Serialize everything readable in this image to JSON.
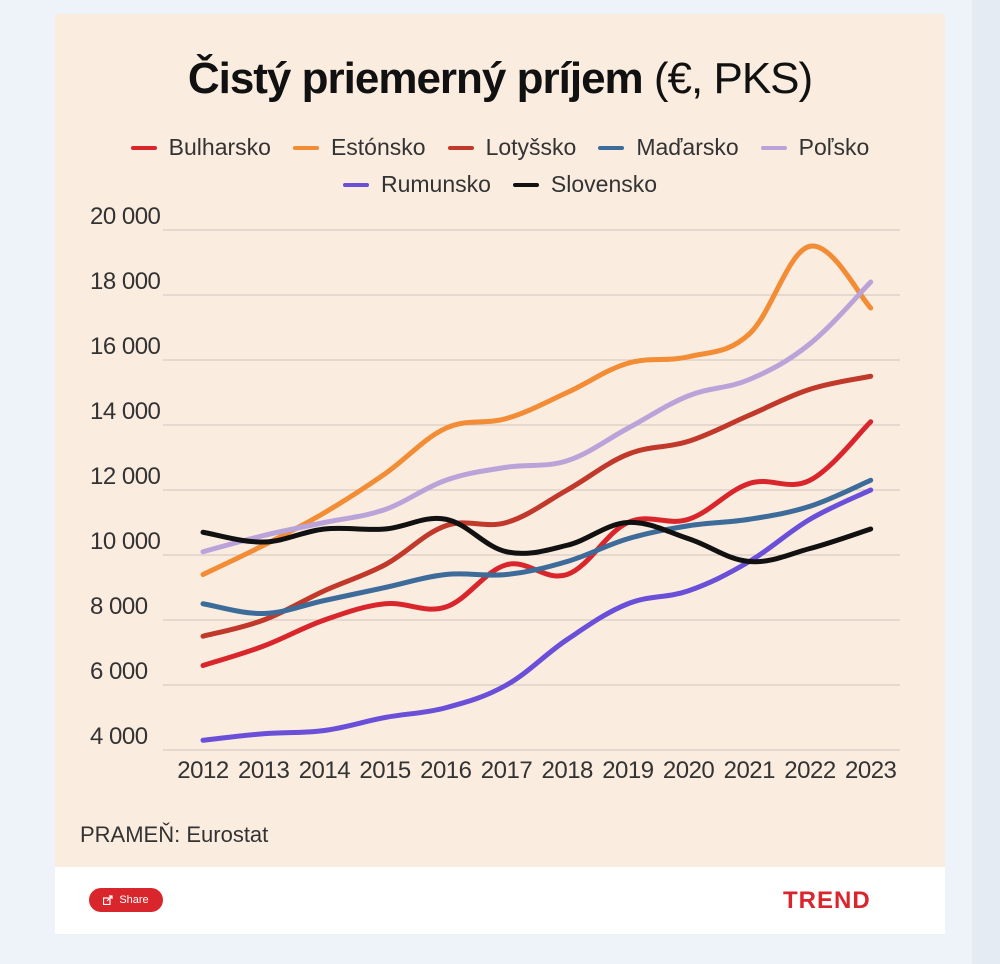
{
  "header": {
    "title_main": "Čistý priemerný príjem",
    "title_unit": "(€, PKS)"
  },
  "source": "PRAMEŇ: Eurostat",
  "footer": {
    "share_label": "Share",
    "brand": "TREND"
  },
  "colors": {
    "panel_background": "#fbece0",
    "brand_red": "#d9262c"
  },
  "chart_data": {
    "type": "line",
    "title": "Čistý priemerný príjem (€, PKS)",
    "x": [
      "2012",
      "2013",
      "2014",
      "2015",
      "2016",
      "2017",
      "2018",
      "2019",
      "2020",
      "2021",
      "2022",
      "2023"
    ],
    "ylim": [
      4000,
      20000
    ],
    "yticks": [
      4000,
      6000,
      8000,
      10000,
      12000,
      14000,
      16000,
      18000,
      20000
    ],
    "ytick_labels": [
      "4 000",
      "6 000",
      "8 000",
      "10 000",
      "12 000",
      "14 000",
      "16 000",
      "18 000",
      "20 000"
    ],
    "grid": true,
    "legend_position": "top-center",
    "series": [
      {
        "name": "Bulharsko",
        "color": "#d9262c",
        "values": [
          6600,
          7200,
          8000,
          8500,
          8400,
          9700,
          9400,
          11000,
          11100,
          12200,
          12300,
          14100
        ]
      },
      {
        "name": "Estónsko",
        "color": "#f28c35",
        "values": [
          9400,
          10300,
          11300,
          12500,
          13900,
          14200,
          15000,
          15900,
          16100,
          16800,
          19500,
          17600
        ]
      },
      {
        "name": "Lotyšsko",
        "color": "#c0392b",
        "values": [
          7500,
          8000,
          8900,
          9700,
          10900,
          11000,
          12000,
          13100,
          13500,
          14300,
          15100,
          15500
        ]
      },
      {
        "name": "Maďarsko",
        "color": "#3d6b9a",
        "values": [
          8500,
          8200,
          8600,
          9000,
          9400,
          9400,
          9800,
          10500,
          10900,
          11100,
          11500,
          12300
        ]
      },
      {
        "name": "Poľsko",
        "color": "#b9a3d9",
        "values": [
          10100,
          10600,
          11000,
          11400,
          12300,
          12700,
          12900,
          13900,
          14900,
          15400,
          16500,
          18400
        ]
      },
      {
        "name": "Rumunsko",
        "color": "#6a4fd8",
        "values": [
          4300,
          4500,
          4600,
          5000,
          5300,
          6000,
          7400,
          8500,
          8900,
          9800,
          11100,
          12000
        ]
      },
      {
        "name": "Slovensko",
        "color": "#111111",
        "values": [
          10700,
          10400,
          10800,
          10800,
          11100,
          10100,
          10300,
          11000,
          10500,
          9800,
          10200,
          10800
        ]
      }
    ]
  }
}
